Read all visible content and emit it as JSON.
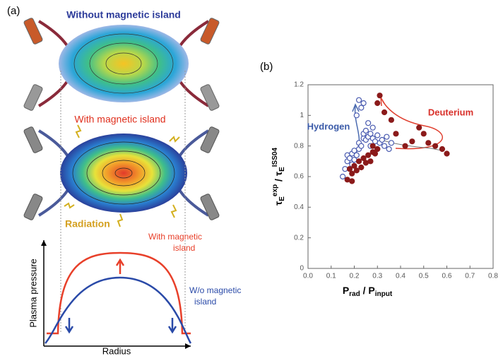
{
  "panel_a": {
    "label": "(a)",
    "top_title": "Without magnetic island",
    "mid_title": "With magnetic island",
    "radiation": "Radiation",
    "pressure_plot": {
      "ylabel": "Plasma pressure",
      "xlabel": "Radius",
      "with_label": [
        "With magnetic",
        "island"
      ],
      "without_label": [
        "W/o magnetic",
        "island"
      ]
    }
  },
  "chart_data": {
    "type": "scatter",
    "label": "(b)",
    "xlabel": [
      "P",
      "rad",
      " / P",
      "input"
    ],
    "ylabel": [
      "τ",
      "E",
      "exp",
      " / τ",
      "E",
      "ISS04"
    ],
    "xlim": [
      0,
      0.8
    ],
    "xticks": [
      {
        "value": 0,
        "label": "0.0"
      },
      0.1,
      0.2,
      0.3,
      0.4,
      0.5,
      0.6,
      0.7,
      0.8
    ],
    "ylim": [
      0,
      1.2
    ],
    "yticks": [
      0,
      0.2,
      0.4,
      0.6,
      0.8,
      1,
      1.2
    ],
    "series": [
      {
        "name": "Hydrogen",
        "color": "#4a5bb0",
        "filled": false,
        "x": [
          0.15,
          0.16,
          0.17,
          0.17,
          0.18,
          0.19,
          0.19,
          0.2,
          0.2,
          0.21,
          0.22,
          0.22,
          0.23,
          0.24,
          0.24,
          0.25,
          0.25,
          0.26,
          0.27,
          0.27,
          0.28,
          0.28,
          0.29,
          0.3,
          0.3,
          0.31,
          0.32,
          0.33,
          0.34,
          0.35,
          0.36,
          0.22,
          0.23,
          0.24,
          0.21,
          0.26
        ],
        "values": [
          0.6,
          0.65,
          0.7,
          0.74,
          0.72,
          0.68,
          0.75,
          0.77,
          0.71,
          0.74,
          0.78,
          0.82,
          0.8,
          0.85,
          0.88,
          0.84,
          0.9,
          0.86,
          0.88,
          0.8,
          0.92,
          0.85,
          0.83,
          0.87,
          0.78,
          0.82,
          0.84,
          0.8,
          0.86,
          0.78,
          0.82,
          1.1,
          1.05,
          1.08,
          1.0,
          0.95
        ]
      },
      {
        "name": "Deuterium",
        "color": "#8b1a1a",
        "filled": true,
        "x": [
          0.18,
          0.19,
          0.2,
          0.21,
          0.22,
          0.23,
          0.24,
          0.25,
          0.26,
          0.27,
          0.28,
          0.29,
          0.3,
          0.28,
          0.3,
          0.31,
          0.33,
          0.36,
          0.38,
          0.42,
          0.45,
          0.48,
          0.5,
          0.52,
          0.55,
          0.58,
          0.6,
          0.17,
          0.19
        ],
        "values": [
          0.65,
          0.62,
          0.67,
          0.64,
          0.7,
          0.66,
          0.72,
          0.69,
          0.74,
          0.7,
          0.76,
          0.75,
          0.78,
          0.8,
          1.08,
          1.13,
          1.02,
          0.97,
          0.88,
          0.8,
          0.83,
          0.92,
          0.88,
          0.82,
          0.8,
          0.78,
          0.75,
          0.58,
          0.57
        ]
      }
    ]
  }
}
